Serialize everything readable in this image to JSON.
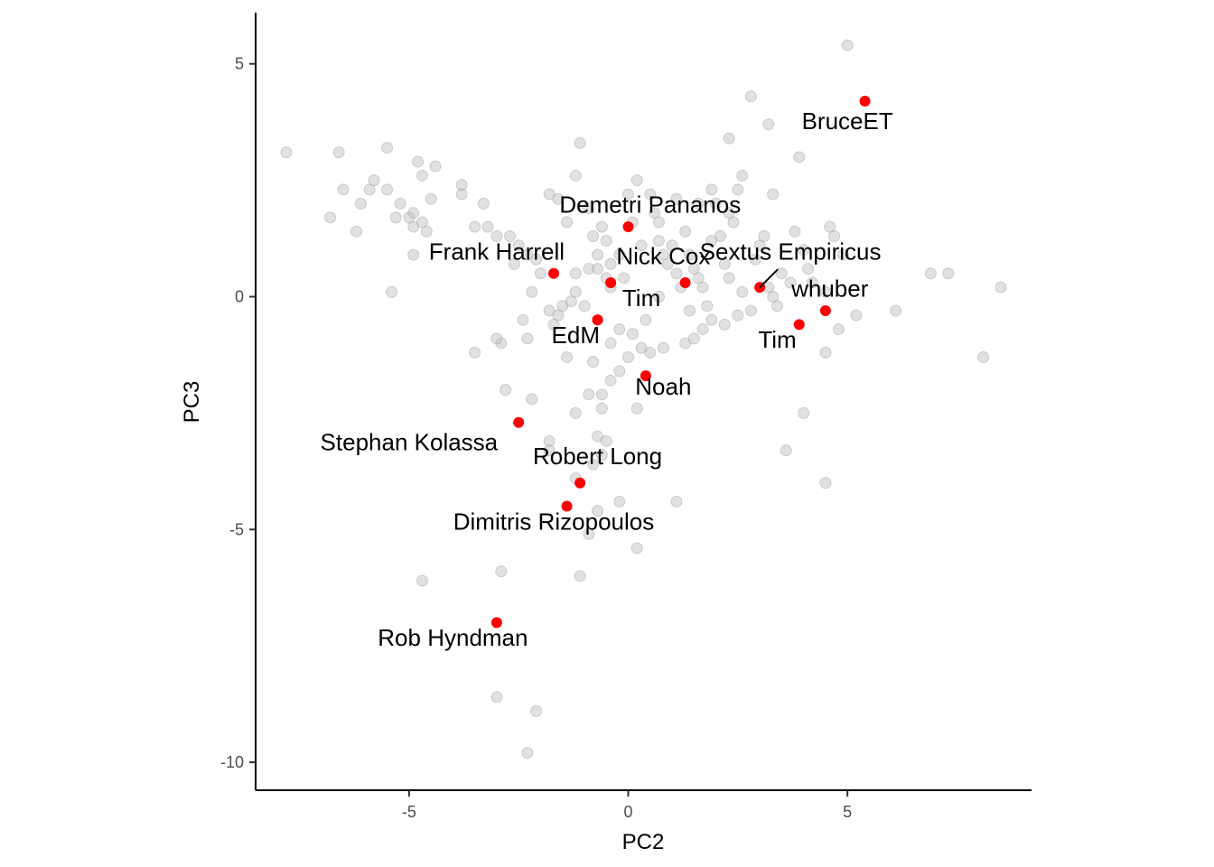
{
  "chart_data": {
    "type": "scatter",
    "title": "",
    "xlabel": "PC2",
    "ylabel": "PC3",
    "xlim": [
      -8.5,
      9.2
    ],
    "ylim": [
      -10.6,
      6.1
    ],
    "xticks": [
      -5,
      0,
      5
    ],
    "yticks": [
      -10,
      -5,
      0,
      5
    ],
    "grid": false,
    "legend": "none",
    "colors": {
      "background_points": "#bdbdbd",
      "highlight_points": "#ff0000",
      "axis": "#000000"
    },
    "background_points": [
      [
        -7.8,
        3.1
      ],
      [
        -6.6,
        3.1
      ],
      [
        -6.5,
        2.3
      ],
      [
        -6.8,
        1.7
      ],
      [
        -6.2,
        1.4
      ],
      [
        -6.1,
        2.0
      ],
      [
        -5.9,
        2.3
      ],
      [
        -5.8,
        2.5
      ],
      [
        -5.5,
        3.2
      ],
      [
        -5.5,
        2.3
      ],
      [
        -5.3,
        1.7
      ],
      [
        -5.2,
        2.0
      ],
      [
        -5.0,
        1.7
      ],
      [
        -4.9,
        1.8
      ],
      [
        -4.9,
        1.5
      ],
      [
        -4.9,
        0.9
      ],
      [
        -4.8,
        2.9
      ],
      [
        -4.7,
        1.6
      ],
      [
        -4.6,
        1.4
      ],
      [
        -4.5,
        2.1
      ],
      [
        -4.7,
        2.6
      ],
      [
        -4.4,
        2.8
      ],
      [
        -3.8,
        2.4
      ],
      [
        -3.8,
        2.2
      ],
      [
        -3.5,
        1.5
      ],
      [
        -3.3,
        2.0
      ],
      [
        -3.2,
        1.5
      ],
      [
        -3.0,
        1.3
      ],
      [
        -2.7,
        1.3
      ],
      [
        -2.5,
        1.1
      ],
      [
        -2.3,
        0.9
      ],
      [
        -2.1,
        0.8
      ],
      [
        -2.6,
        0.7
      ],
      [
        -2.0,
        0.5
      ],
      [
        -1.8,
        2.2
      ],
      [
        -1.6,
        2.1
      ],
      [
        -1.4,
        1.6
      ],
      [
        -1.2,
        2.6
      ],
      [
        -1.1,
        3.3
      ],
      [
        -0.9,
        1.9
      ],
      [
        -0.8,
        1.3
      ],
      [
        -0.6,
        1.5
      ],
      [
        -0.7,
        0.9
      ],
      [
        -0.9,
        0.6
      ],
      [
        -0.7,
        0.6
      ],
      [
        -0.5,
        0.4
      ],
      [
        -0.4,
        0.7
      ],
      [
        -0.2,
        0.9
      ],
      [
        0.0,
        2.2
      ],
      [
        0.1,
        1.6
      ],
      [
        0.3,
        1.1
      ],
      [
        0.5,
        2.2
      ],
      [
        0.6,
        1.8
      ],
      [
        0.7,
        1.6
      ],
      [
        0.7,
        1.2
      ],
      [
        0.8,
        0.9
      ],
      [
        0.9,
        0.7
      ],
      [
        1.0,
        1.1
      ],
      [
        1.1,
        0.5
      ],
      [
        1.2,
        0.2
      ],
      [
        1.3,
        1.4
      ],
      [
        1.4,
        0.9
      ],
      [
        1.5,
        0.6
      ],
      [
        1.6,
        0.4
      ],
      [
        1.7,
        0.2
      ],
      [
        1.8,
        -0.2
      ],
      [
        1.9,
        1.2
      ],
      [
        2.0,
        2.0
      ],
      [
        2.1,
        1.3
      ],
      [
        2.2,
        0.7
      ],
      [
        2.3,
        0.4
      ],
      [
        2.4,
        1.6
      ],
      [
        2.5,
        2.3
      ],
      [
        2.6,
        0.1
      ],
      [
        2.8,
        -0.3
      ],
      [
        2.9,
        0.8
      ],
      [
        3.0,
        1.1
      ],
      [
        3.1,
        1.3
      ],
      [
        3.2,
        0.2
      ],
      [
        3.3,
        0.0
      ],
      [
        3.4,
        -0.2
      ],
      [
        3.5,
        0.5
      ],
      [
        3.7,
        0.3
      ],
      [
        3.8,
        1.4
      ],
      [
        4.0,
        1.0
      ],
      [
        4.1,
        0.6
      ],
      [
        4.2,
        0.3
      ],
      [
        4.5,
        0.1
      ],
      [
        4.6,
        1.5
      ],
      [
        4.7,
        1.3
      ],
      [
        4.8,
        -0.7
      ],
      [
        4.9,
        0.9
      ],
      [
        5.0,
        5.4
      ],
      [
        5.2,
        -0.4
      ],
      [
        6.1,
        -0.3
      ],
      [
        6.9,
        0.5
      ],
      [
        7.3,
        0.5
      ],
      [
        8.1,
        -1.3
      ],
      [
        8.5,
        0.2
      ],
      [
        2.8,
        4.3
      ],
      [
        3.2,
        3.7
      ],
      [
        2.3,
        3.4
      ],
      [
        3.9,
        3.0
      ],
      [
        3.3,
        2.2
      ],
      [
        2.6,
        2.6
      ],
      [
        1.9,
        2.3
      ],
      [
        1.6,
        2.0
      ],
      [
        -2.2,
        0.1
      ],
      [
        -2.4,
        -0.5
      ],
      [
        -1.8,
        -0.3
      ],
      [
        -1.7,
        -0.6
      ],
      [
        -1.6,
        -0.4
      ],
      [
        -1.5,
        -0.2
      ],
      [
        -1.3,
        -0.1
      ],
      [
        -1.2,
        0.1
      ],
      [
        -1.0,
        -0.2
      ],
      [
        -2.9,
        -1.0
      ],
      [
        -3.0,
        -0.9
      ],
      [
        -2.3,
        -0.9
      ],
      [
        -1.4,
        -1.3
      ],
      [
        -0.8,
        -1.4
      ],
      [
        -0.4,
        -1.0
      ],
      [
        -0.2,
        -0.7
      ],
      [
        0.1,
        -0.8
      ],
      [
        0.3,
        -1.1
      ],
      [
        0.5,
        -1.2
      ],
      [
        0.8,
        -1.1
      ],
      [
        1.3,
        -1.0
      ],
      [
        1.5,
        -0.9
      ],
      [
        1.7,
        -0.7
      ],
      [
        1.9,
        -0.5
      ],
      [
        2.2,
        -0.6
      ],
      [
        2.5,
        -0.4
      ],
      [
        0.0,
        -1.3
      ],
      [
        -0.2,
        -1.6
      ],
      [
        -0.4,
        -1.8
      ],
      [
        -0.6,
        -2.1
      ],
      [
        -0.9,
        -2.1
      ],
      [
        -2.8,
        -2.0
      ],
      [
        -2.2,
        -2.2
      ],
      [
        -1.2,
        -2.5
      ],
      [
        -0.6,
        -2.4
      ],
      [
        0.2,
        -2.4
      ],
      [
        -1.8,
        -3.1
      ],
      [
        -1.8,
        -3.3
      ],
      [
        -0.7,
        -3.0
      ],
      [
        -0.5,
        -3.1
      ],
      [
        -0.6,
        -3.4
      ],
      [
        -0.8,
        -3.6
      ],
      [
        -1.2,
        -3.9
      ],
      [
        -0.2,
        -4.4
      ],
      [
        -0.7,
        -4.6
      ],
      [
        -0.9,
        -5.1
      ],
      [
        0.2,
        -5.4
      ],
      [
        1.1,
        -4.4
      ],
      [
        3.6,
        -3.3
      ],
      [
        4.0,
        -2.5
      ],
      [
        4.5,
        -4.0
      ],
      [
        4.5,
        -1.2
      ],
      [
        -4.7,
        -6.1
      ],
      [
        -2.9,
        -5.9
      ],
      [
        -1.1,
        -6.0
      ],
      [
        -3.5,
        -1.2
      ],
      [
        -5.4,
        0.1
      ],
      [
        -3.0,
        -8.6
      ],
      [
        -2.1,
        -8.9
      ],
      [
        -2.3,
        -9.8
      ],
      [
        -1.2,
        0.5
      ],
      [
        -0.4,
        0.2
      ],
      [
        0.7,
        0.0
      ],
      [
        1.4,
        -0.3
      ],
      [
        0.4,
        -0.5
      ],
      [
        -0.1,
        0.4
      ],
      [
        2.3,
        1.8
      ],
      [
        1.1,
        2.1
      ],
      [
        -0.5,
        1.2
      ],
      [
        0.2,
        2.5
      ]
    ],
    "highlighted": [
      {
        "name": "BruceET",
        "x": 5.4,
        "y": 4.2
      },
      {
        "name": "Demetri Pananos",
        "x": 0.0,
        "y": 1.5
      },
      {
        "name": "Frank Harrell",
        "x": -1.7,
        "y": 0.5
      },
      {
        "name": "Nick Cox",
        "x": -0.4,
        "y": 0.3
      },
      {
        "name": "Nick Cox",
        "x": 1.3,
        "y": 0.3
      },
      {
        "name": "Sextus Empiricus",
        "x": 3.0,
        "y": 0.2
      },
      {
        "name": "whuber",
        "x": 4.5,
        "y": -0.3
      },
      {
        "name": "Tim",
        "x": 3.9,
        "y": -0.6
      },
      {
        "name": "Tim",
        "x": -0.7,
        "y": -0.5
      },
      {
        "name": "EdM",
        "x": -0.7,
        "y": -0.5
      },
      {
        "name": "Noah",
        "x": 0.4,
        "y": -1.7
      },
      {
        "name": "Stephan Kolassa",
        "x": -2.5,
        "y": -2.7
      },
      {
        "name": "Robert Long",
        "x": -1.1,
        "y": -4.0
      },
      {
        "name": "Dimitris Rizopoulos",
        "x": -1.4,
        "y": -4.5
      },
      {
        "name": "Rob Hyndman",
        "x": -3.0,
        "y": -7.0
      }
    ],
    "labels": [
      {
        "text": "BruceET",
        "x": 5.0,
        "y": 3.6,
        "anchor": "middle"
      },
      {
        "text": "Demetri Pananos",
        "x": 0.5,
        "y": 1.8,
        "anchor": "middle"
      },
      {
        "text": "Frank Harrell",
        "x": -3.0,
        "y": 0.8,
        "anchor": "middle"
      },
      {
        "text": "Nick Cox",
        "x": 0.8,
        "y": 0.7,
        "anchor": "middle"
      },
      {
        "text": "Sextus Empiricus",
        "x": 3.7,
        "y": 0.8,
        "anchor": "middle"
      },
      {
        "text": "whuber",
        "x": 4.6,
        "y": 0.0,
        "anchor": "middle"
      },
      {
        "text": "Tim",
        "x": 0.3,
        "y": -0.2,
        "anchor": "middle"
      },
      {
        "text": "EdM",
        "x": -1.2,
        "y": -1.0,
        "anchor": "middle"
      },
      {
        "text": "Tim",
        "x": 3.4,
        "y": -1.1,
        "anchor": "middle"
      },
      {
        "text": "Noah",
        "x": 0.8,
        "y": -2.1,
        "anchor": "middle"
      },
      {
        "text": "Stephan Kolassa",
        "x": -5.0,
        "y": -3.3,
        "anchor": "middle"
      },
      {
        "text": "Robert Long",
        "x": -0.7,
        "y": -3.6,
        "anchor": "middle"
      },
      {
        "text": "Dimitris Rizopoulos",
        "x": -1.7,
        "y": -5.0,
        "anchor": "middle"
      },
      {
        "text": "Rob Hyndman",
        "x": -4.0,
        "y": -7.5,
        "anchor": "middle"
      }
    ]
  }
}
